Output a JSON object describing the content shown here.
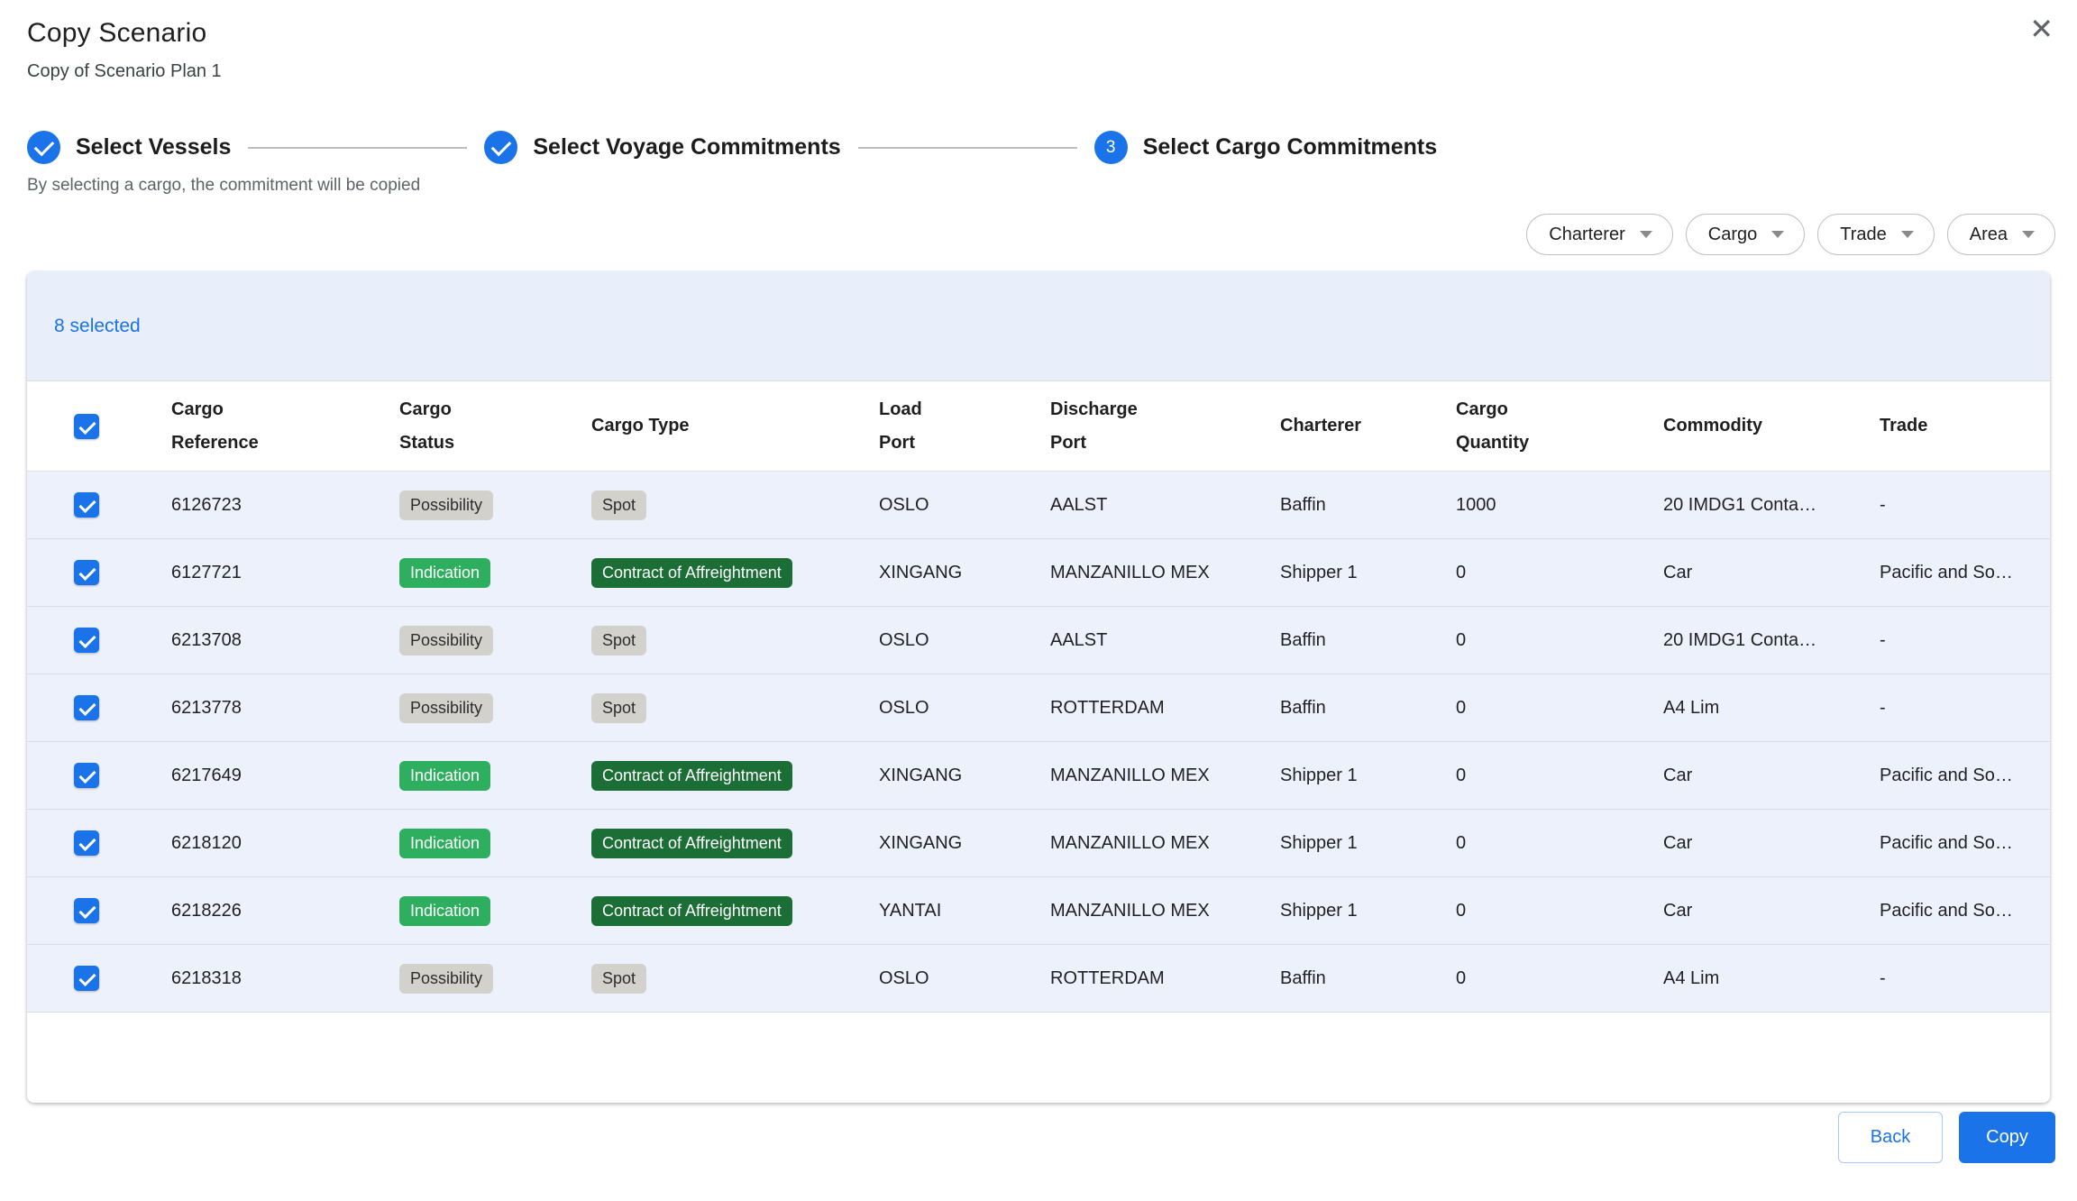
{
  "dialog": {
    "title": "Copy Scenario",
    "subtitle": "Copy of Scenario Plan 1",
    "caption": "By selecting a cargo, the commitment will be copied",
    "close_glyph": "✕"
  },
  "stepper": {
    "steps": [
      {
        "label": "Select Vessels",
        "state": "complete"
      },
      {
        "label": "Select Voyage Commitments",
        "state": "complete"
      },
      {
        "label": "Select Cargo Commitments",
        "state": "active",
        "badge": "3"
      }
    ]
  },
  "filters": [
    {
      "label": "Charterer"
    },
    {
      "label": "Cargo"
    },
    {
      "label": "Trade"
    },
    {
      "label": "Area"
    }
  ],
  "table": {
    "selected_count_label": "8 selected",
    "columns": [
      "Cargo\nReference",
      "Cargo\nStatus",
      "Cargo Type",
      "Load\nPort",
      "Discharge\nPort",
      "Charterer",
      "Cargo\nQuantity",
      "Commodity",
      "Trade"
    ],
    "badge_variants": {
      "Possibility": "gray",
      "Spot": "gray",
      "Indication": "green",
      "Contract of Affreightment": "darkgreen"
    },
    "rows": [
      {
        "checked": true,
        "cargo_reference": "6126723",
        "cargo_status": "Possibility",
        "cargo_type": "Spot",
        "load_port": "OSLO",
        "discharge_port": "AALST",
        "charterer": "Baffin",
        "cargo_quantity": "1000",
        "commodity": "20 IMDG1 Conta…",
        "trade": "-"
      },
      {
        "checked": true,
        "cargo_reference": "6127721",
        "cargo_status": "Indication",
        "cargo_type": "Contract of Affreightment",
        "load_port": "XINGANG",
        "discharge_port": "MANZANILLO MEX",
        "charterer": "Shipper 1",
        "cargo_quantity": "0",
        "commodity": "Car",
        "trade": "Pacific and So…"
      },
      {
        "checked": true,
        "cargo_reference": "6213708",
        "cargo_status": "Possibility",
        "cargo_type": "Spot",
        "load_port": "OSLO",
        "discharge_port": "AALST",
        "charterer": "Baffin",
        "cargo_quantity": "0",
        "commodity": "20 IMDG1 Conta…",
        "trade": "-"
      },
      {
        "checked": true,
        "cargo_reference": "6213778",
        "cargo_status": "Possibility",
        "cargo_type": "Spot",
        "load_port": "OSLO",
        "discharge_port": "ROTTERDAM",
        "charterer": "Baffin",
        "cargo_quantity": "0",
        "commodity": "A4 Lim",
        "trade": "-"
      },
      {
        "checked": true,
        "cargo_reference": "6217649",
        "cargo_status": "Indication",
        "cargo_type": "Contract of Affreightment",
        "load_port": "XINGANG",
        "discharge_port": "MANZANILLO MEX",
        "charterer": "Shipper 1",
        "cargo_quantity": "0",
        "commodity": "Car",
        "trade": "Pacific and So…"
      },
      {
        "checked": true,
        "cargo_reference": "6218120",
        "cargo_status": "Indication",
        "cargo_type": "Contract of Affreightment",
        "load_port": "XINGANG",
        "discharge_port": "MANZANILLO MEX",
        "charterer": "Shipper 1",
        "cargo_quantity": "0",
        "commodity": "Car",
        "trade": "Pacific and So…"
      },
      {
        "checked": true,
        "cargo_reference": "6218226",
        "cargo_status": "Indication",
        "cargo_type": "Contract of Affreightment",
        "load_port": "YANTAI",
        "discharge_port": "MANZANILLO MEX",
        "charterer": "Shipper 1",
        "cargo_quantity": "0",
        "commodity": "Car",
        "trade": "Pacific and So…"
      },
      {
        "checked": true,
        "cargo_reference": "6218318",
        "cargo_status": "Possibility",
        "cargo_type": "Spot",
        "load_port": "OSLO",
        "discharge_port": "ROTTERDAM",
        "charterer": "Baffin",
        "cargo_quantity": "0",
        "commodity": "A4 Lim",
        "trade": "-"
      }
    ]
  },
  "footer": {
    "back_label": "Back",
    "copy_label": "Copy"
  },
  "colors": {
    "accent": "#1a73e8",
    "band_bg": "#e9eefb",
    "row_selected_bg": "#edf1fc",
    "badge_gray_bg": "#d3d1cb",
    "badge_green_bg": "#2eae5f",
    "badge_darkgreen_bg": "#1b6e35"
  }
}
